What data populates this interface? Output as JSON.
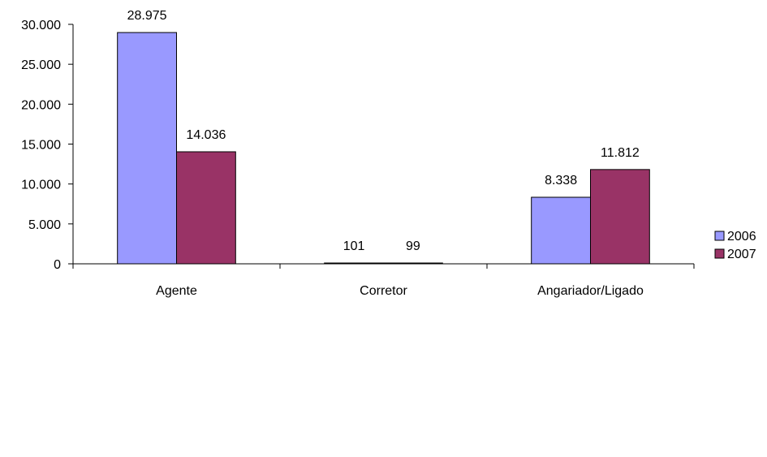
{
  "chart_data": {
    "type": "bar",
    "categories": [
      "Agente",
      "Corretor",
      "Angariador/Ligado"
    ],
    "series": [
      {
        "name": "2006",
        "values": [
          28975,
          101,
          8338
        ],
        "labels": [
          "28.975",
          "101",
          "8.338"
        ],
        "color": "#9999ff"
      },
      {
        "name": "2007",
        "values": [
          14036,
          99,
          11812
        ],
        "labels": [
          "14.036",
          "99",
          "11.812"
        ],
        "color": "#993366"
      }
    ],
    "title": "",
    "xlabel": "",
    "ylabel": "",
    "ylim": [
      0,
      30000
    ],
    "yticks": [
      0,
      5000,
      10000,
      15000,
      20000,
      25000,
      30000
    ],
    "ytick_labels": [
      "0",
      "5.000",
      "10.000",
      "15.000",
      "20.000",
      "25.000",
      "30.000"
    ],
    "grid": false,
    "legend": "right"
  }
}
